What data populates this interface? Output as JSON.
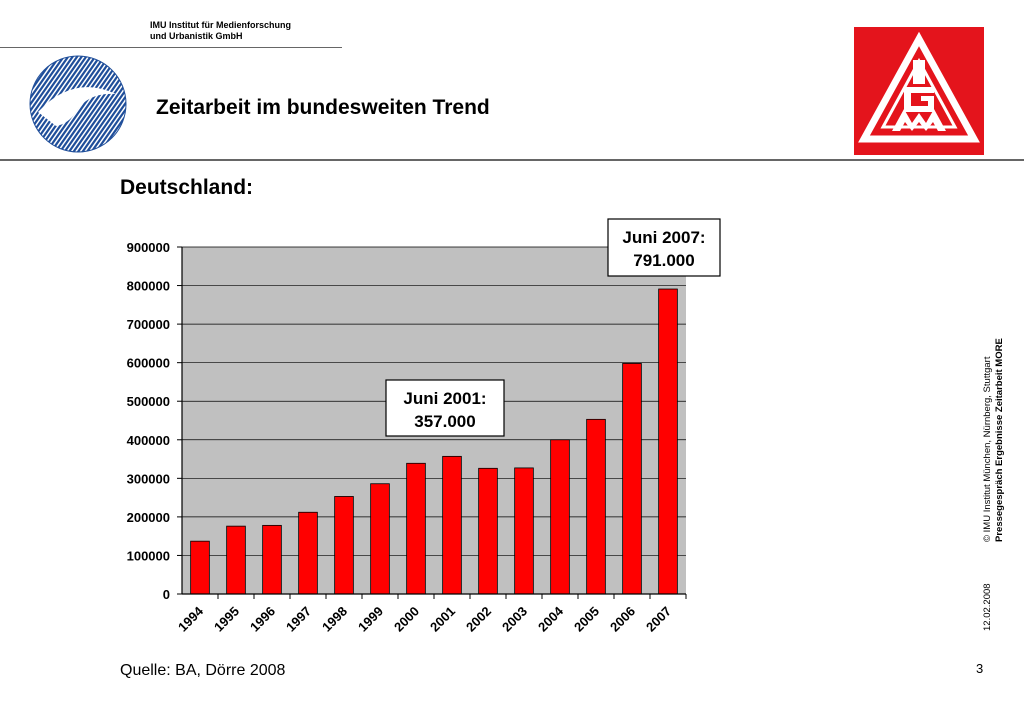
{
  "header": {
    "org_line1": "IMU Institut für Medienforschung",
    "org_line2": "und Urbanistik GmbH",
    "title": "Zeitarbeit im bundesweiten Trend"
  },
  "logos": {
    "left": "IMU logo",
    "right": "IG Metall logo",
    "right_color": "#e4141c"
  },
  "section_title": "Deutschland:",
  "chart_data": {
    "type": "bar",
    "categories": [
      "1994",
      "1995",
      "1996",
      "1997",
      "1998",
      "1999",
      "2000",
      "2001",
      "2002",
      "2003",
      "2004",
      "2005",
      "2006",
      "2007"
    ],
    "values": [
      137000,
      176000,
      178000,
      212000,
      253000,
      286000,
      339000,
      357000,
      326000,
      327000,
      400000,
      453000,
      598000,
      791000
    ],
    "ylim": [
      0,
      900000
    ],
    "yticks": [
      "0",
      "100000",
      "200000",
      "300000",
      "400000",
      "500000",
      "600000",
      "700000",
      "800000",
      "900000"
    ],
    "xlabel": "",
    "ylabel": "",
    "bar_color": "#ff0000",
    "plot_background": "#c0c0c0",
    "grid": true,
    "annotations": [
      {
        "line1": "Juni 2001:",
        "line2": "357.000",
        "category": "2001"
      },
      {
        "line1": "Juni 2007:",
        "line2": "791.000",
        "category": "2007"
      }
    ]
  },
  "source": "Quelle: BA, Dörre 2008",
  "side": {
    "copyright": "© IMU Institut München, Nürnberg, Stuttgart",
    "event": "Pressegespräch Ergebnisse Zeitarbeit MORE",
    "date": "12.02.2008"
  },
  "page_number": "3"
}
